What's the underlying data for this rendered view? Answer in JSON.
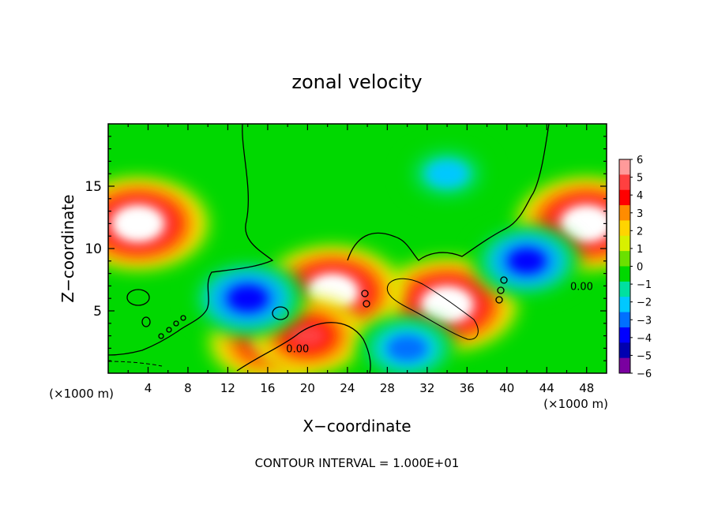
{
  "chart_data": {
    "type": "heatmap",
    "title": "zonal velocity",
    "xlabel": "X−coordinate",
    "ylabel": "Z−coordinate",
    "x_unit": "(×1000 m)",
    "y_unit": "(×1000 m)",
    "footer": "CONTOUR INTERVAL = 1.000E+01",
    "xlim": [
      0,
      50
    ],
    "ylim": [
      0,
      20
    ],
    "x_ticks": [
      4,
      8,
      12,
      16,
      20,
      24,
      28,
      32,
      36,
      40,
      44,
      48
    ],
    "y_ticks": [
      5,
      10,
      15
    ],
    "colorbar": {
      "range": [
        -6,
        6
      ],
      "tick_labels": [
        "6",
        "5",
        "4",
        "3",
        "2",
        "1",
        "0",
        "−1",
        "−2",
        "−3",
        "−4",
        "−5",
        "−6"
      ],
      "colors": [
        "#ff9a9a",
        "#ff4040",
        "#ff0000",
        "#ff8c00",
        "#ffd400",
        "#d8f000",
        "#6ae000",
        "#00d800",
        "#00e0a0",
        "#00c8ff",
        "#0070ff",
        "#0000ff",
        "#0000b0",
        "#7a00a0"
      ]
    },
    "contour_labels": [
      {
        "text": "0.00",
        "x": 19,
        "y": 2
      },
      {
        "text": "0.00",
        "x": 47.5,
        "y": 7
      }
    ],
    "features": [
      {
        "x": 3,
        "y": 12,
        "value": 6.5
      },
      {
        "x": 48,
        "y": 12,
        "value": 6.5
      },
      {
        "x": 34,
        "y": 5.5,
        "value": 6.5
      },
      {
        "x": 22.5,
        "y": 6.5,
        "value": 6.5
      },
      {
        "x": 16,
        "y": 2.5,
        "value": 5
      },
      {
        "x": 20,
        "y": 3,
        "value": 5
      },
      {
        "x": 34,
        "y": 16,
        "value": -3
      },
      {
        "x": 42,
        "y": 9,
        "value": -4.5
      },
      {
        "x": 14,
        "y": 6,
        "value": -5
      },
      {
        "x": 30,
        "y": 2,
        "value": -4
      }
    ]
  }
}
